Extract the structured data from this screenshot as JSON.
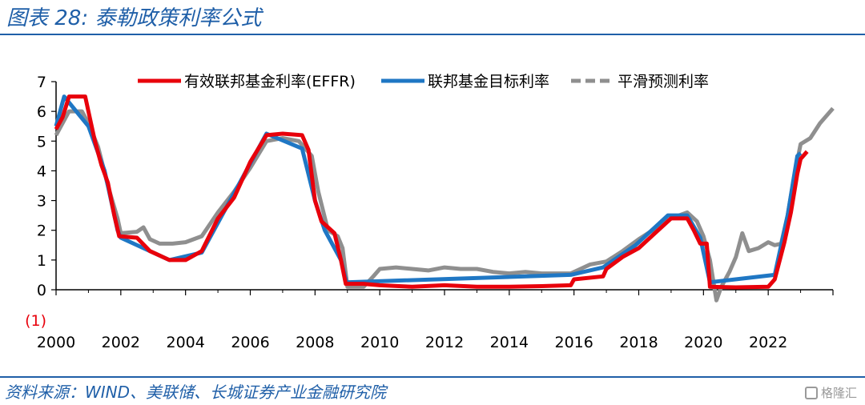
{
  "header": {
    "title": "图表 28:  泰勒政策利率公式"
  },
  "footer": {
    "source": "资料来源：WIND、美联储、长城证券产业金融研究院",
    "watermark": "格隆汇"
  },
  "colors": {
    "effr": "#e8000b",
    "target": "#1f77c4",
    "taylor": "#8f8f8f",
    "brand": "#1f5fa8"
  },
  "chart_data": {
    "type": "line",
    "title": "",
    "xlabel": "",
    "ylabel": "",
    "xlim": [
      2000,
      2024
    ],
    "ylim": [
      -1,
      7
    ],
    "xticks": [
      2000,
      2002,
      2004,
      2006,
      2008,
      2010,
      2012,
      2014,
      2016,
      2018,
      2020,
      2022
    ],
    "yticks": [
      7,
      6,
      5,
      4,
      3,
      2,
      1,
      0,
      -1
    ],
    "ytick_labels": [
      "7",
      "6",
      "5",
      "4",
      "3",
      "2",
      "1",
      "0",
      "(1)"
    ],
    "legend_position": "top",
    "series": [
      {
        "name": "有效联邦基金利率(EFFR)",
        "color": "#e8000b",
        "style": "solid",
        "points": [
          [
            2000.0,
            5.4
          ],
          [
            2000.2,
            5.8
          ],
          [
            2000.4,
            6.5
          ],
          [
            2000.9,
            6.5
          ],
          [
            2001.0,
            6.0
          ],
          [
            2001.2,
            5.0
          ],
          [
            2001.4,
            4.2
          ],
          [
            2001.6,
            3.6
          ],
          [
            2001.8,
            2.5
          ],
          [
            2001.95,
            1.8
          ],
          [
            2002.5,
            1.75
          ],
          [
            2002.9,
            1.3
          ],
          [
            2003.5,
            1.0
          ],
          [
            2004.0,
            1.0
          ],
          [
            2004.5,
            1.3
          ],
          [
            2005.0,
            2.4
          ],
          [
            2005.5,
            3.1
          ],
          [
            2006.0,
            4.3
          ],
          [
            2006.5,
            5.2
          ],
          [
            2007.0,
            5.25
          ],
          [
            2007.6,
            5.2
          ],
          [
            2007.8,
            4.7
          ],
          [
            2008.0,
            3.0
          ],
          [
            2008.2,
            2.3
          ],
          [
            2008.6,
            1.9
          ],
          [
            2008.8,
            1.0
          ],
          [
            2008.95,
            0.2
          ],
          [
            2009.5,
            0.2
          ],
          [
            2010.0,
            0.15
          ],
          [
            2011.0,
            0.1
          ],
          [
            2012.0,
            0.15
          ],
          [
            2013.0,
            0.1
          ],
          [
            2014.0,
            0.1
          ],
          [
            2015.0,
            0.12
          ],
          [
            2015.9,
            0.15
          ],
          [
            2016.0,
            0.35
          ],
          [
            2016.9,
            0.45
          ],
          [
            2017.0,
            0.7
          ],
          [
            2017.5,
            1.1
          ],
          [
            2018.0,
            1.4
          ],
          [
            2018.5,
            1.9
          ],
          [
            2019.0,
            2.4
          ],
          [
            2019.5,
            2.4
          ],
          [
            2019.7,
            2.0
          ],
          [
            2019.9,
            1.55
          ],
          [
            2020.1,
            1.55
          ],
          [
            2020.2,
            0.1
          ],
          [
            2021.0,
            0.08
          ],
          [
            2022.0,
            0.1
          ],
          [
            2022.2,
            0.35
          ],
          [
            2022.5,
            1.6
          ],
          [
            2022.7,
            2.6
          ],
          [
            2022.9,
            3.9
          ],
          [
            2023.0,
            4.4
          ],
          [
            2023.2,
            4.65
          ]
        ]
      },
      {
        "name": "联邦基金目标利率",
        "color": "#1f77c4",
        "style": "solid",
        "points": [
          [
            2000.0,
            5.5
          ],
          [
            2000.25,
            6.5
          ],
          [
            2001.0,
            5.5
          ],
          [
            2001.5,
            4.0
          ],
          [
            2001.9,
            2.0
          ],
          [
            2002.0,
            1.75
          ],
          [
            2003.5,
            1.0
          ],
          [
            2004.5,
            1.25
          ],
          [
            2005.5,
            3.25
          ],
          [
            2006.5,
            5.25
          ],
          [
            2007.6,
            4.75
          ],
          [
            2008.0,
            3.0
          ],
          [
            2008.3,
            2.0
          ],
          [
            2008.8,
            1.0
          ],
          [
            2008.97,
            0.25
          ],
          [
            2015.9,
            0.5
          ],
          [
            2016.9,
            0.75
          ],
          [
            2017.9,
            1.5
          ],
          [
            2018.9,
            2.5
          ],
          [
            2019.5,
            2.5
          ],
          [
            2019.9,
            1.75
          ],
          [
            2020.2,
            0.25
          ],
          [
            2022.2,
            0.5
          ],
          [
            2022.6,
            2.5
          ],
          [
            2022.9,
            4.5
          ],
          [
            2023.0,
            4.6
          ]
        ]
      },
      {
        "name": "平滑预测利率",
        "color": "#8f8f8f",
        "style": "dashed",
        "points": [
          [
            2000.0,
            5.2
          ],
          [
            2000.4,
            6.0
          ],
          [
            2000.8,
            6.0
          ],
          [
            2001.0,
            5.6
          ],
          [
            2001.3,
            4.8
          ],
          [
            2001.6,
            3.5
          ],
          [
            2001.9,
            2.4
          ],
          [
            2002.0,
            1.9
          ],
          [
            2002.5,
            1.95
          ],
          [
            2002.7,
            2.1
          ],
          [
            2002.9,
            1.7
          ],
          [
            2003.2,
            1.55
          ],
          [
            2003.6,
            1.55
          ],
          [
            2004.0,
            1.6
          ],
          [
            2004.5,
            1.8
          ],
          [
            2005.0,
            2.6
          ],
          [
            2005.5,
            3.3
          ],
          [
            2006.0,
            4.1
          ],
          [
            2006.5,
            5.0
          ],
          [
            2007.0,
            5.1
          ],
          [
            2007.5,
            5.0
          ],
          [
            2007.9,
            4.5
          ],
          [
            2008.1,
            3.3
          ],
          [
            2008.4,
            2.0
          ],
          [
            2008.7,
            1.8
          ],
          [
            2008.85,
            1.4
          ],
          [
            2009.0,
            0.1
          ],
          [
            2009.5,
            0.1
          ],
          [
            2009.8,
            0.45
          ],
          [
            2010.0,
            0.7
          ],
          [
            2010.5,
            0.75
          ],
          [
            2011.0,
            0.7
          ],
          [
            2011.5,
            0.65
          ],
          [
            2012.0,
            0.75
          ],
          [
            2012.5,
            0.7
          ],
          [
            2013.0,
            0.7
          ],
          [
            2013.5,
            0.6
          ],
          [
            2014.0,
            0.55
          ],
          [
            2014.5,
            0.6
          ],
          [
            2015.0,
            0.55
          ],
          [
            2015.9,
            0.55
          ],
          [
            2016.5,
            0.85
          ],
          [
            2017.0,
            0.95
          ],
          [
            2017.5,
            1.3
          ],
          [
            2018.0,
            1.7
          ],
          [
            2018.5,
            2.05
          ],
          [
            2019.0,
            2.4
          ],
          [
            2019.5,
            2.6
          ],
          [
            2019.8,
            2.3
          ],
          [
            2020.0,
            1.8
          ],
          [
            2020.2,
            1.0
          ],
          [
            2020.4,
            -0.35
          ],
          [
            2020.55,
            0.1
          ],
          [
            2020.8,
            0.6
          ],
          [
            2021.0,
            1.1
          ],
          [
            2021.2,
            1.9
          ],
          [
            2021.4,
            1.3
          ],
          [
            2021.7,
            1.4
          ],
          [
            2022.0,
            1.6
          ],
          [
            2022.2,
            1.5
          ],
          [
            2022.4,
            1.55
          ],
          [
            2022.6,
            2.5
          ],
          [
            2022.8,
            3.8
          ],
          [
            2023.0,
            4.9
          ],
          [
            2023.3,
            5.1
          ],
          [
            2023.6,
            5.6
          ],
          [
            2024.0,
            6.1
          ]
        ]
      }
    ]
  }
}
